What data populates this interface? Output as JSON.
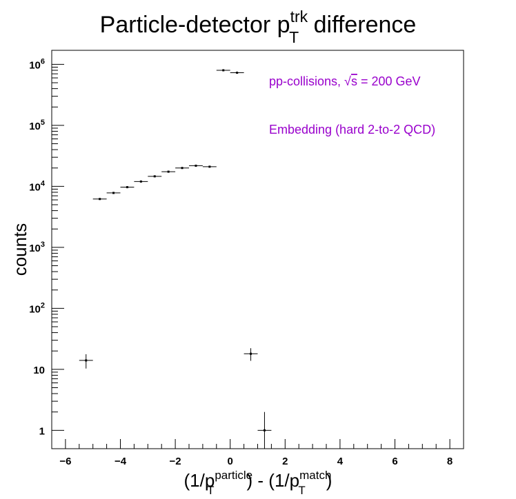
{
  "chart_data": {
    "type": "scatter",
    "title": {
      "main": "Particle-detector p",
      "sup": "trk",
      "sub": "T",
      "tail": " difference"
    },
    "xlabel": {
      "a": "(1/p",
      "a_sup": "particle",
      "a_sub": "T",
      "mid": ") - (1/p",
      "b_sup": "match",
      "b_sub": "T",
      "end": ")"
    },
    "ylabel": "counts",
    "xlim": [
      -6.5,
      8.5
    ],
    "ylim": [
      0.5,
      1700000
    ],
    "log_y": true,
    "grid": false,
    "x_ticks": [
      -6,
      -4,
      -2,
      0,
      2,
      4,
      6,
      8
    ],
    "x_tick_labels": [
      "−6",
      "−4",
      "−2",
      "0",
      "2",
      "4",
      "6",
      "8"
    ],
    "y_ticks": [
      {
        "value": 1,
        "base": "1",
        "exp": ""
      },
      {
        "value": 10,
        "base": "10",
        "exp": ""
      },
      {
        "value": 100,
        "base": "10",
        "exp": "2"
      },
      {
        "value": 1000,
        "base": "10",
        "exp": "3"
      },
      {
        "value": 10000,
        "base": "10",
        "exp": "4"
      },
      {
        "value": 100000,
        "base": "10",
        "exp": "5"
      },
      {
        "value": 1000000,
        "base": "10",
        "exp": "6"
      }
    ],
    "bin_halfwidth": 0.25,
    "points": [
      {
        "x": -5.25,
        "y": 14,
        "yerr": 3.7
      },
      {
        "x": -4.75,
        "y": 6200,
        "yerr": 0
      },
      {
        "x": -4.25,
        "y": 7800,
        "yerr": 0
      },
      {
        "x": -3.75,
        "y": 9700,
        "yerr": 0
      },
      {
        "x": -3.25,
        "y": 12000,
        "yerr": 0
      },
      {
        "x": -2.75,
        "y": 14600,
        "yerr": 0
      },
      {
        "x": -2.25,
        "y": 17400,
        "yerr": 0
      },
      {
        "x": -1.75,
        "y": 20000,
        "yerr": 0
      },
      {
        "x": -1.25,
        "y": 21800,
        "yerr": 0
      },
      {
        "x": -0.75,
        "y": 21000,
        "yerr": 0
      },
      {
        "x": -0.25,
        "y": 800000,
        "yerr": 0
      },
      {
        "x": 0.25,
        "y": 730000,
        "yerr": 0
      },
      {
        "x": 0.75,
        "y": 18,
        "yerr": 4.2
      },
      {
        "x": 1.25,
        "y": 1,
        "yerr": 1
      }
    ],
    "annotations": [
      {
        "text": "pp-collisions, ",
        "sqrt_text": "s",
        "tail": " = 200 GeV"
      },
      {
        "text": "Embedding (hard 2-to-2 QCD)"
      }
    ],
    "colors": {
      "annotation": "#9900cc",
      "markers": "#000000",
      "frame": "#000000"
    }
  }
}
